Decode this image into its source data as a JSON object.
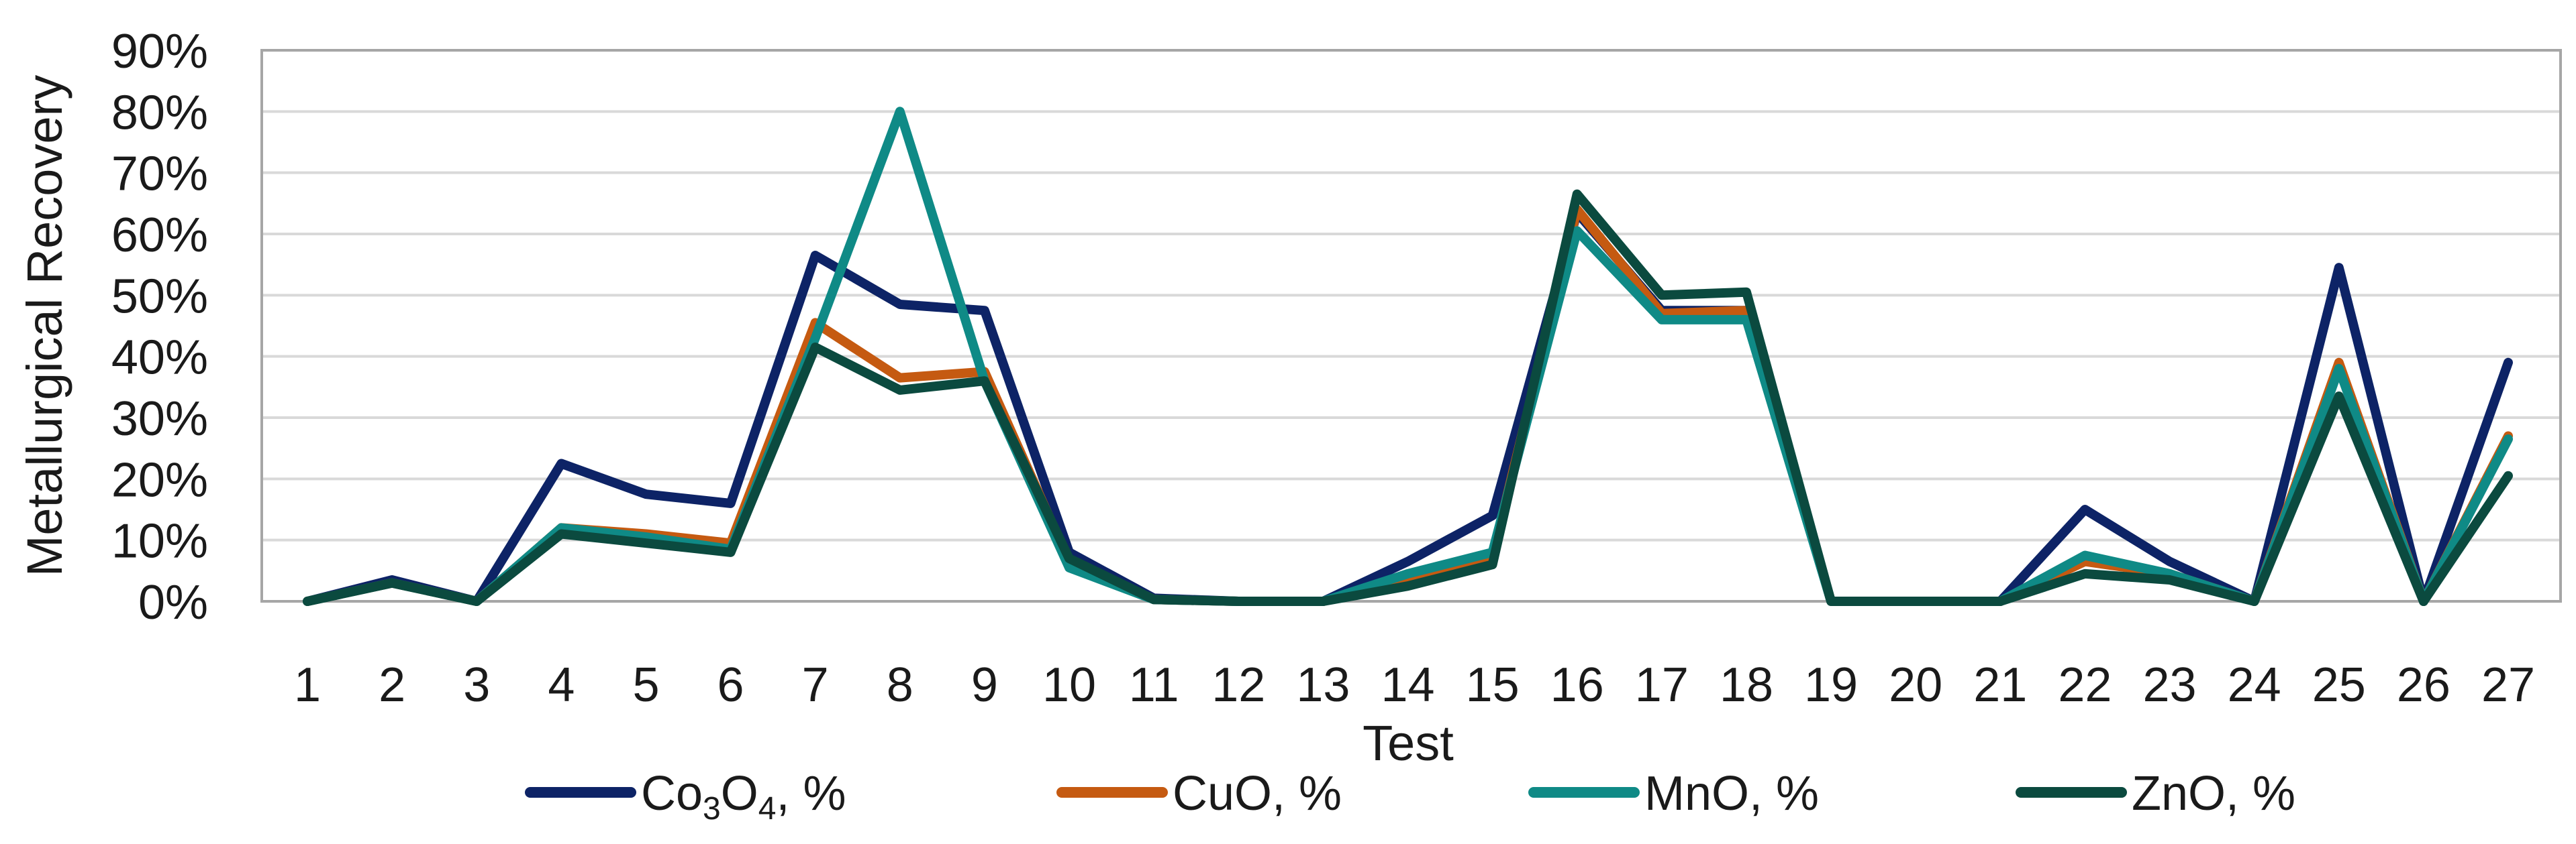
{
  "chart_data": {
    "type": "line",
    "xlabel": "Test",
    "ylabel": "Metallurgical Recovery",
    "ylim": [
      0,
      0.9
    ],
    "y_ticks": [
      "0%",
      "10%",
      "20%",
      "30%",
      "40%",
      "50%",
      "60%",
      "70%",
      "80%",
      "90%"
    ],
    "grid": true,
    "legend_position": "bottom",
    "categories": [
      "1",
      "2",
      "3",
      "4",
      "5",
      "6",
      "7",
      "8",
      "9",
      "10",
      "11",
      "12",
      "13",
      "14",
      "15",
      "16",
      "17",
      "18",
      "19",
      "20",
      "21",
      "22",
      "23",
      "24",
      "25",
      "26",
      "27"
    ],
    "series": [
      {
        "name": "Co3O4, %",
        "name_parts": {
          "pre": "Co",
          "sub1": "3",
          "mid": "O",
          "sub2": "4",
          "post": ", %"
        },
        "color": "#0d2366",
        "values": [
          0,
          0.035,
          0,
          0.225,
          0.175,
          0.16,
          0.565,
          0.485,
          0.475,
          0.08,
          0.005,
          0,
          0,
          0.065,
          0.14,
          0.635,
          0.475,
          0.475,
          0,
          0,
          0,
          0.15,
          0.065,
          0,
          0.545,
          0,
          0.39
        ]
      },
      {
        "name": "CuO, %",
        "color": "#c55a11",
        "values": [
          0,
          0.03,
          0,
          0.12,
          0.11,
          0.095,
          0.455,
          0.365,
          0.375,
          0.065,
          0.003,
          0,
          0,
          0.04,
          0.075,
          0.64,
          0.47,
          0.475,
          0,
          0,
          0,
          0.065,
          0.045,
          0,
          0.39,
          0,
          0.27
        ]
      },
      {
        "name": "MnO, %",
        "color": "#0f8a86",
        "values": [
          0,
          0.03,
          0,
          0.12,
          0.105,
          0.085,
          0.43,
          0.8,
          0.36,
          0.055,
          0.003,
          0,
          0,
          0.045,
          0.08,
          0.605,
          0.46,
          0.46,
          0,
          0,
          0,
          0.075,
          0.045,
          0,
          0.38,
          0,
          0.265
        ]
      },
      {
        "name": "ZnO, %",
        "color": "#0b4a3f",
        "values": [
          0,
          0.03,
          0,
          0.11,
          0.095,
          0.08,
          0.415,
          0.345,
          0.36,
          0.07,
          0.003,
          0,
          0,
          0.025,
          0.06,
          0.665,
          0.5,
          0.505,
          0,
          0,
          0,
          0.045,
          0.035,
          0,
          0.335,
          0,
          0.205
        ]
      }
    ]
  }
}
